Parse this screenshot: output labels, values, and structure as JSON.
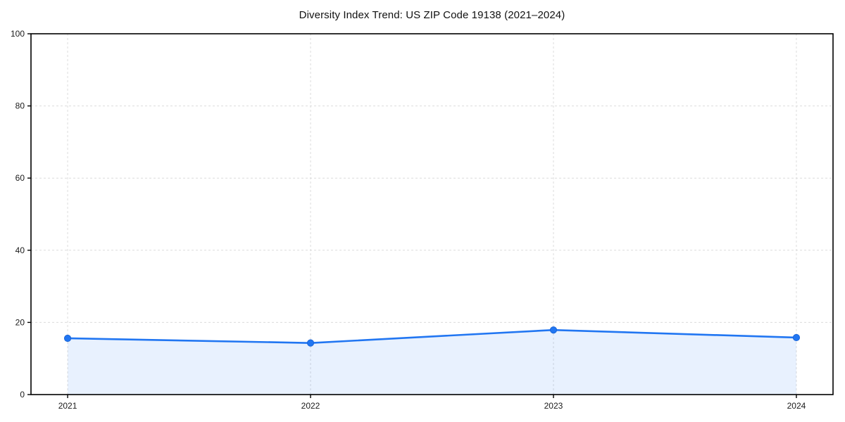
{
  "chart_data": {
    "type": "area",
    "title": "Diversity Index Trend: US ZIP Code 19138 (2021–2024)",
    "categories": [
      "2021",
      "2022",
      "2023",
      "2024"
    ],
    "series": [
      {
        "name": "Diversity Index",
        "values": [
          15.6,
          14.3,
          17.9,
          15.8
        ]
      }
    ],
    "xlabel": "",
    "ylabel": "",
    "ylim": [
      0,
      100
    ],
    "yticks": [
      0,
      20,
      40,
      60,
      80,
      100
    ],
    "grid": "dashed-both-axes",
    "legend": "none",
    "marker": "filled-circle",
    "colors": {
      "line": "#2176f2",
      "marker": "#2176f2",
      "marker_edge": "#1a66d9",
      "fill": "rgba(33,118,242,0.10)",
      "grid": "#dcdcdc",
      "axis": "#000000",
      "title_text": "#111111",
      "tick_text": "#1a1a1a",
      "background": "#ffffff"
    }
  }
}
